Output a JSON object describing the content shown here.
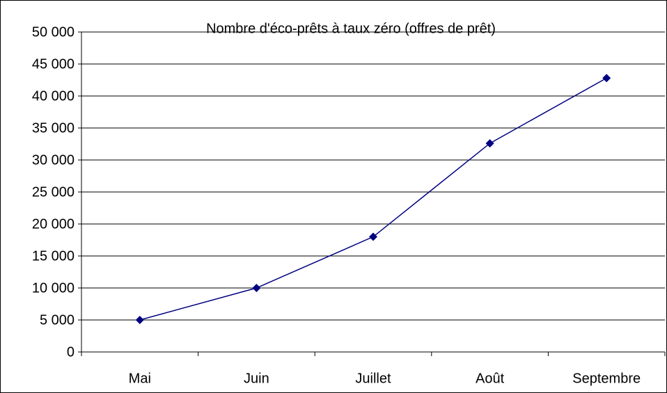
{
  "chart_data": {
    "type": "line",
    "title": "Nombre d'éco-prêts à taux zéro (offres de prêt)",
    "categories": [
      "Mai",
      "Juin",
      "Juillet",
      "Août",
      "Septembre"
    ],
    "series": [
      {
        "color": "#000080",
        "values": [
          5000,
          10000,
          18000,
          32600,
          42800
        ]
      }
    ],
    "ylim": [
      0,
      50000
    ],
    "yticks": [
      0,
      {
        "value": 5000,
        "label": "5 000"
      },
      {
        "value": 10000,
        "label": "10 000"
      },
      {
        "value": 15000,
        "label": "15 000"
      },
      {
        "value": 20000,
        "label": "20 000"
      },
      {
        "value": 25000,
        "label": "25 000"
      },
      {
        "value": 30000,
        "label": "30 000"
      },
      {
        "value": 35000,
        "label": "35 000"
      },
      {
        "value": 40000,
        "label": "40 000"
      },
      {
        "value": 45000,
        "label": "45 000"
      },
      {
        "value": 50000,
        "label": "50 000"
      }
    ],
    "grid": true
  }
}
